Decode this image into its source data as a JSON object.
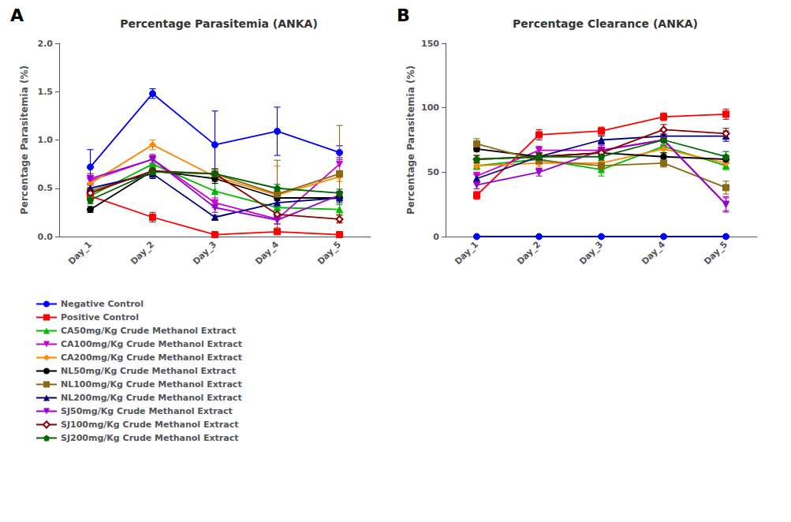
{
  "chart_data": [
    {
      "type": "line",
      "title": "Percentage Parasitemia (ANKA)",
      "annotations": [
        "A"
      ],
      "ylabel": "Percentage Parasitemia (%)",
      "categories": [
        "Day_1",
        "Day_2",
        "Day_3",
        "Day_4",
        "Day_5"
      ],
      "ylim": [
        0.0,
        2.0
      ],
      "yticks": [
        {
          "value": 0.0,
          "label": "0.0"
        },
        0.5,
        {
          "value": 1.0,
          "label": "1.0"
        },
        1.5,
        {
          "value": 2.0,
          "label": "2.0"
        }
      ],
      "grid": false,
      "legend": "lower left",
      "series": [
        {
          "name": "Negative Control",
          "color": "#0000FF",
          "marker": "circle",
          "values": [
            0.72,
            1.48,
            0.95,
            1.09,
            0.87
          ],
          "errors": [
            0.18,
            0.05,
            0.35,
            0.25,
            0.07
          ]
        },
        {
          "name": "Positive Control",
          "color": "#FF0000",
          "marker": "square",
          "values": [
            0.42,
            0.2,
            0.02,
            0.05,
            0.02
          ],
          "errors": [
            0.05,
            0.05,
            0.02,
            0.02,
            0.01
          ]
        },
        {
          "name": "CA50mg/Kg Crude Methanol Extract",
          "color": "#00BB00",
          "marker": "triangle-up",
          "values": [
            0.42,
            0.75,
            0.47,
            0.3,
            0.28
          ],
          "errors": [
            0.04,
            0.05,
            0.1,
            0.1,
            0.05
          ]
        },
        {
          "name": "CA100mg/Kg Crude Methanol Extract",
          "color": "#CC00CC",
          "marker": "triangle-down",
          "values": [
            0.58,
            0.8,
            0.35,
            0.18,
            0.75
          ],
          "errors": [
            0.05,
            0.05,
            0.05,
            0.05,
            0.07
          ]
        },
        {
          "name": "CA200mg/Kg Crude Methanol Extract",
          "color": "#FF8800",
          "marker": "diamond",
          "values": [
            0.55,
            0.95,
            0.62,
            0.43,
            0.62
          ],
          "errors": [
            0.05,
            0.05,
            0.05,
            0.3,
            0.05
          ]
        },
        {
          "name": "NL50mg/Kg Crude Methanol Extract",
          "color": "#000000",
          "marker": "circle",
          "values": [
            0.28,
            0.68,
            0.6,
            0.4,
            0.4
          ],
          "errors": [
            0.03,
            0.05,
            0.05,
            0.03,
            0.03
          ]
        },
        {
          "name": "NL100mg/Kg Crude Methanol Extract",
          "color": "#8B6914",
          "marker": "square",
          "values": [
            0.47,
            0.67,
            0.65,
            0.44,
            0.65
          ],
          "errors": [
            0.04,
            0.06,
            0.05,
            0.35,
            0.5
          ]
        },
        {
          "name": "NL200mg/Kg Crude Methanol Extract",
          "color": "#000080",
          "marker": "triangle-up",
          "values": [
            0.5,
            0.65,
            0.2,
            0.35,
            0.4
          ],
          "errors": [
            0.05,
            0.05,
            0.02,
            0.05,
            0.05
          ]
        },
        {
          "name": "SJ50mg/Kg Crude Methanol Extract",
          "color": "#9900CC",
          "marker": "triangle-down",
          "values": [
            0.6,
            0.8,
            0.3,
            0.17,
            0.43
          ],
          "errors": [
            0.05,
            0.04,
            0.05,
            0.04,
            0.04
          ]
        },
        {
          "name": "SJ100mg/Kg Crude Methanol Extract",
          "color": "#8B0000",
          "marker": "open-diamond",
          "values": [
            0.45,
            0.68,
            0.65,
            0.23,
            0.18
          ],
          "errors": [
            0.04,
            0.05,
            0.05,
            0.04,
            0.04
          ]
        },
        {
          "name": "SJ200mg/Kg Crude Methanol Extract",
          "color": "#006600",
          "marker": "pentagon",
          "values": [
            0.38,
            0.67,
            0.65,
            0.5,
            0.45
          ],
          "errors": [
            0.04,
            0.04,
            0.05,
            0.04,
            0.04
          ]
        }
      ]
    },
    {
      "type": "line",
      "title": "Percentage Clearance (ANKA)",
      "annotations": [
        "B"
      ],
      "ylabel": "Percentage Parasitemia (%)",
      "categories": [
        "Day_1",
        "Day_2",
        "Day_3",
        "Day_4",
        "Day_5"
      ],
      "ylim": [
        0,
        150
      ],
      "yticks": [
        0,
        50,
        100,
        150
      ],
      "grid": false,
      "series": [
        {
          "name": "Negative Control",
          "color": "#0000FF",
          "marker": "circle",
          "values": [
            0.0,
            0.0,
            0.0,
            0.0,
            0.0
          ],
          "errors": [
            0.0,
            0.0,
            0.0,
            0.0,
            0.0
          ]
        },
        {
          "name": "Positive Control",
          "color": "#FF0000",
          "marker": "square",
          "values": [
            32,
            79,
            82,
            93,
            95
          ],
          "errors": [
            3,
            4,
            3,
            3,
            4
          ]
        },
        {
          "name": "CA50mg/Kg Crude Methanol Extract",
          "color": "#00BB00",
          "marker": "triangle-up",
          "values": [
            55,
            60,
            52,
            70,
            55
          ],
          "errors": [
            3,
            3,
            5,
            5,
            3
          ]
        },
        {
          "name": "CA100mg/Kg Crude Methanol Extract",
          "color": "#CC00CC",
          "marker": "triangle-down",
          "values": [
            47,
            67,
            67,
            75,
            25
          ],
          "errors": [
            3,
            3,
            4,
            4,
            5
          ]
        },
        {
          "name": "CA200mg/Kg Crude Methanol Extract",
          "color": "#FF8800",
          "marker": "diamond",
          "values": [
            55,
            57,
            57,
            68,
            57
          ],
          "errors": [
            3,
            3,
            3,
            5,
            3
          ]
        },
        {
          "name": "NL50mg/Kg Crude Methanol Extract",
          "color": "#000000",
          "marker": "circle",
          "values": [
            68,
            62,
            65,
            62,
            60
          ],
          "errors": [
            2,
            3,
            3,
            3,
            3
          ]
        },
        {
          "name": "NL100mg/Kg Crude Methanol Extract",
          "color": "#8B6914",
          "marker": "square",
          "values": [
            72,
            59,
            55,
            57,
            38
          ],
          "errors": [
            4,
            3,
            3,
            3,
            5
          ]
        },
        {
          "name": "NL200mg/Kg Crude Methanol Extract",
          "color": "#000080",
          "marker": "triangle-up",
          "values": [
            45,
            62,
            75,
            78,
            78
          ],
          "errors": [
            3,
            3,
            3,
            4,
            4
          ]
        },
        {
          "name": "SJ50mg/Kg Crude Methanol Extract",
          "color": "#9900CC",
          "marker": "triangle-down",
          "values": [
            40,
            50,
            67,
            75,
            25
          ],
          "errors": [
            3,
            3,
            4,
            5,
            6
          ]
        },
        {
          "name": "SJ100mg/Kg Crude Methanol Extract",
          "color": "#8B0000",
          "marker": "open-diamond",
          "values": [
            60,
            62,
            65,
            83,
            80
          ],
          "errors": [
            3,
            3,
            3,
            4,
            4
          ]
        },
        {
          "name": "SJ200mg/Kg Crude Methanol Extract",
          "color": "#006600",
          "marker": "pentagon",
          "values": [
            60,
            62,
            62,
            75,
            62
          ],
          "errors": [
            3,
            3,
            3,
            4,
            4
          ]
        }
      ]
    }
  ]
}
